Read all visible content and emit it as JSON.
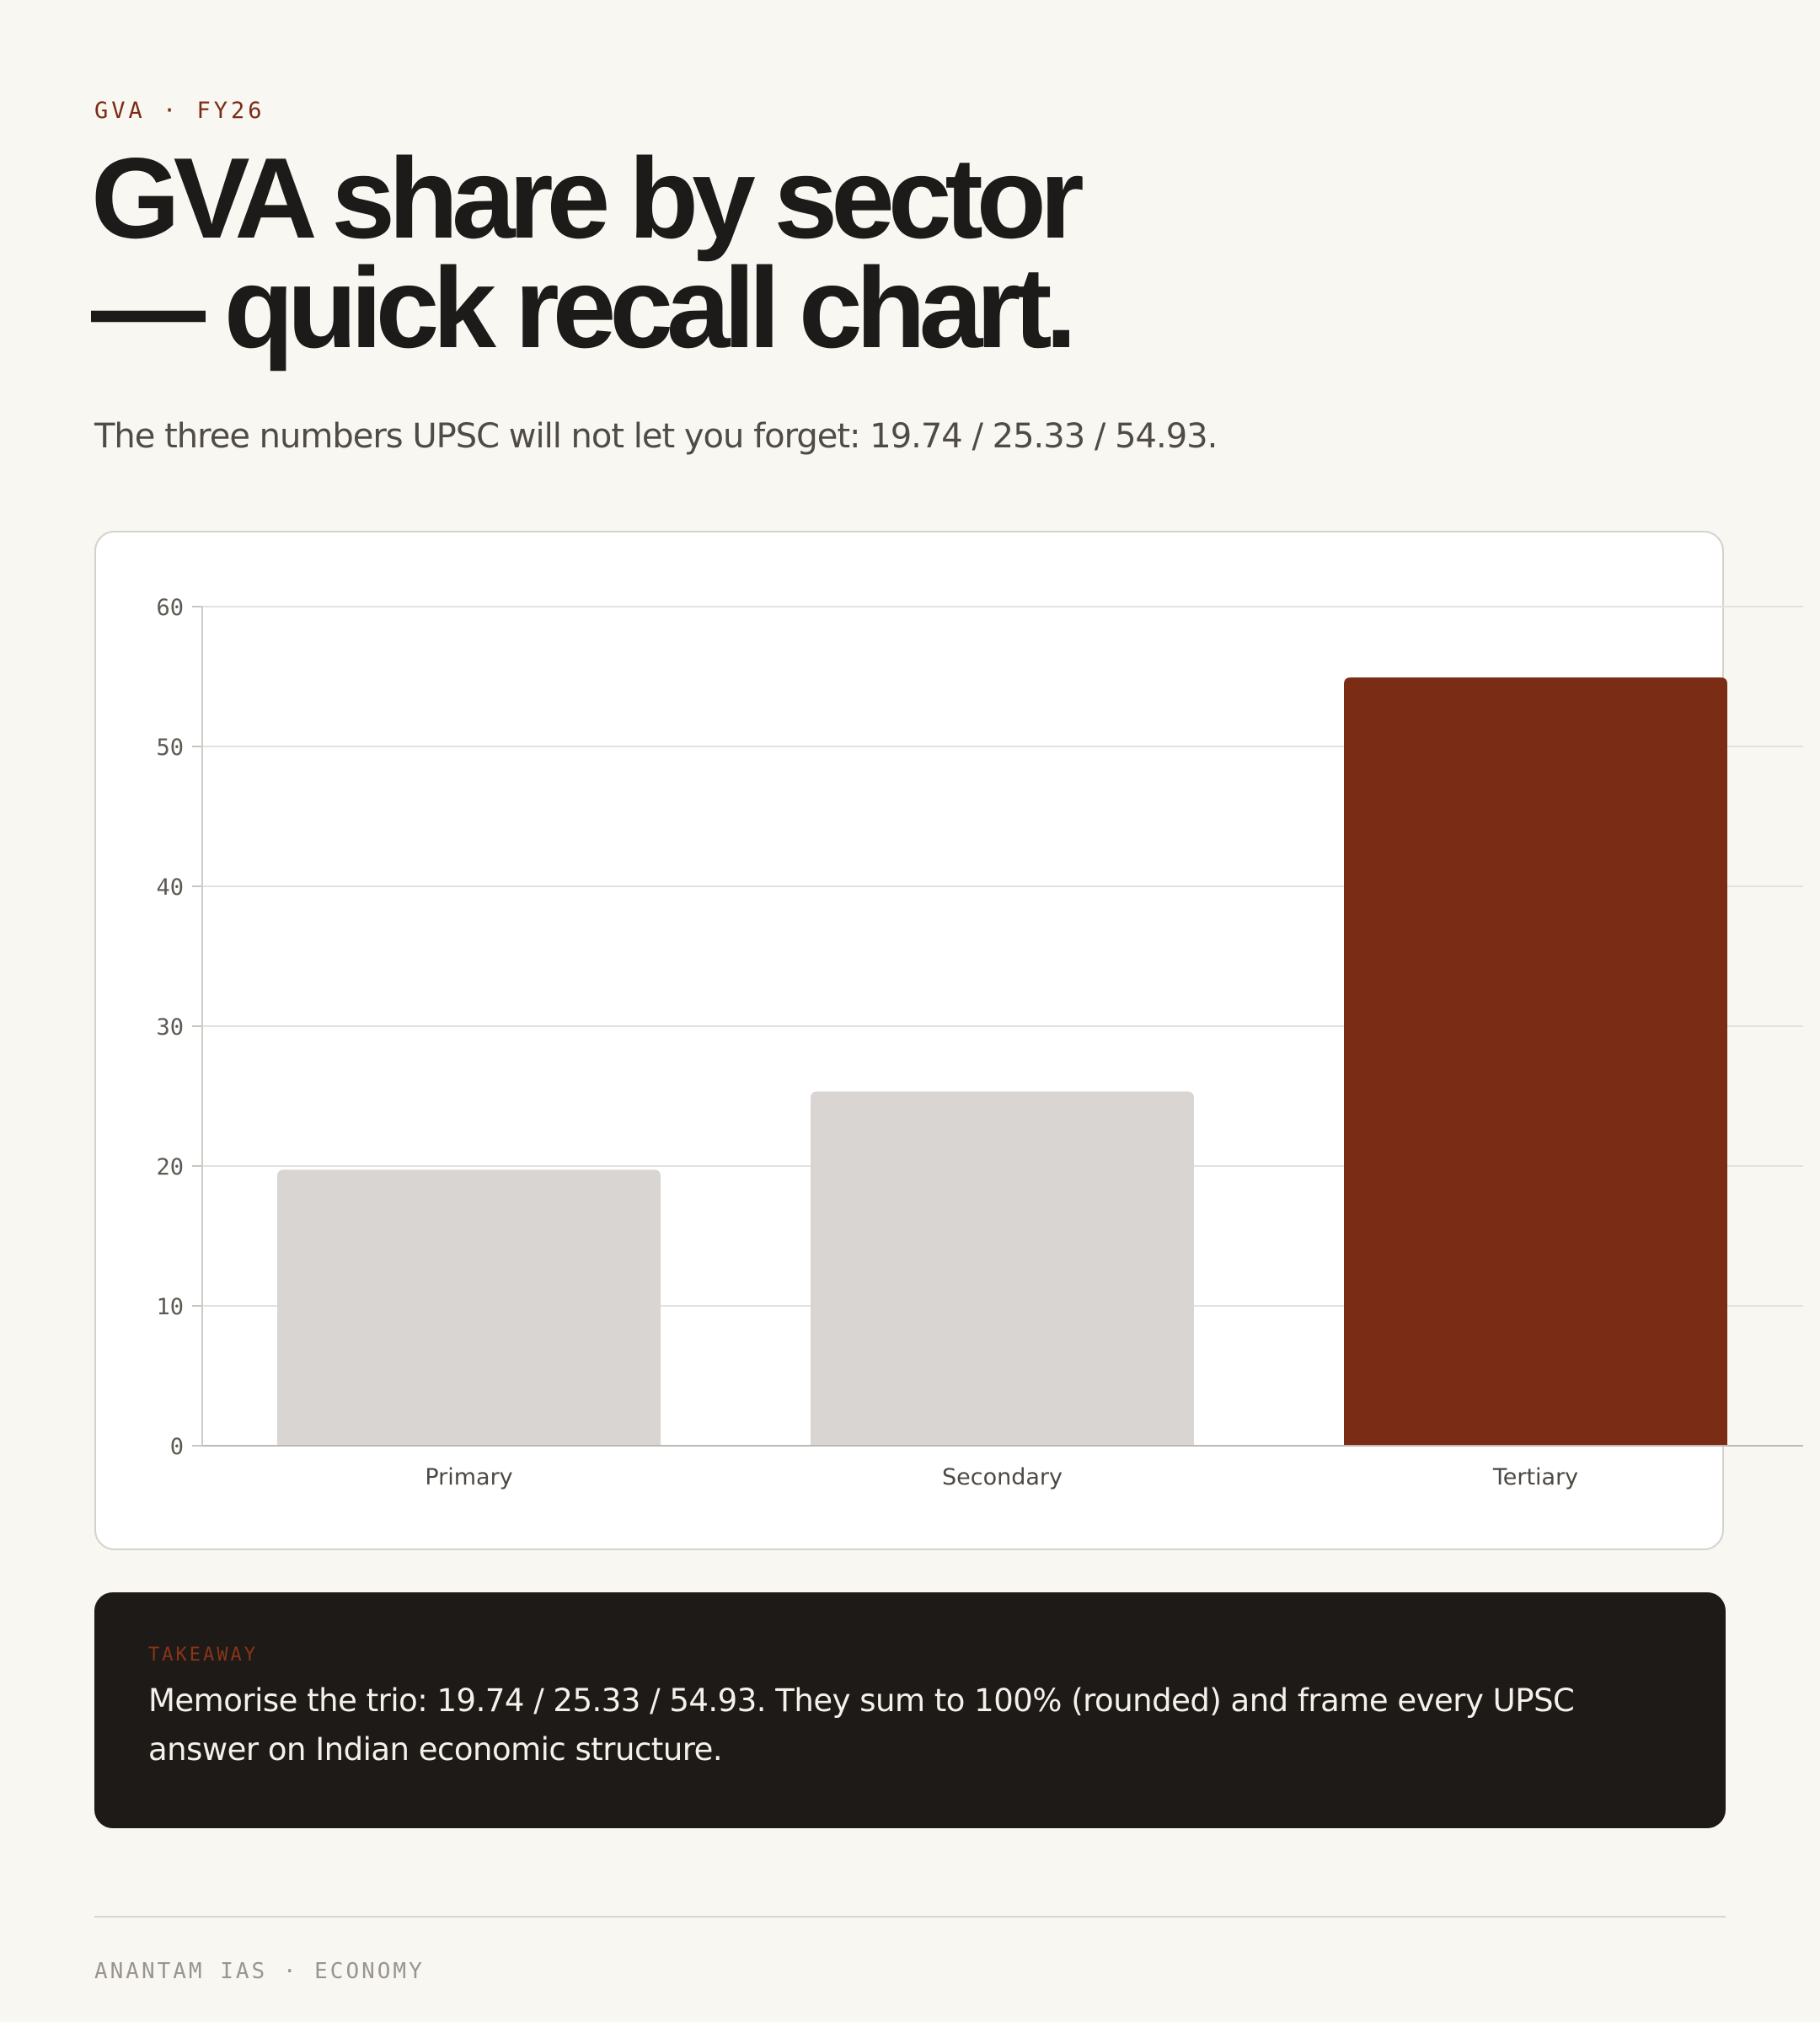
{
  "header": {
    "eyebrow": "GVA · FY26",
    "title_line1": "GVA share by sector",
    "title_line2": "— quick recall chart.",
    "subtitle": "The three numbers UPSC will not let you forget: 19.74 / 25.33 / 54.93."
  },
  "chart_data": {
    "type": "bar",
    "categories": [
      "Primary",
      "Secondary",
      "Tertiary"
    ],
    "values": [
      19.74,
      25.33,
      54.93
    ],
    "title": "",
    "xlabel": "",
    "ylabel": "",
    "ylim": [
      0,
      60
    ],
    "yticks": [
      0,
      10,
      20,
      30,
      40,
      50,
      60
    ],
    "grid": true,
    "legend": "none",
    "colors": [
      "#d8d5d2",
      "#d8d5d2",
      "#7b2c15"
    ],
    "highlight": "Tertiary"
  },
  "takeaway": {
    "label": "TAKEAWAY",
    "text": "Memorise the trio: 19.74 / 25.33 / 54.93. They sum to 100% (rounded) and frame every UPSC answer on Indian economic structure."
  },
  "footer": {
    "text": "ANANTAM IAS · ECONOMY"
  },
  "colors": {
    "background": "#f9f7f2",
    "accent": "#7b2c15",
    "muted_bar": "#d8d5d2",
    "dark_panel": "#1e1a17"
  }
}
